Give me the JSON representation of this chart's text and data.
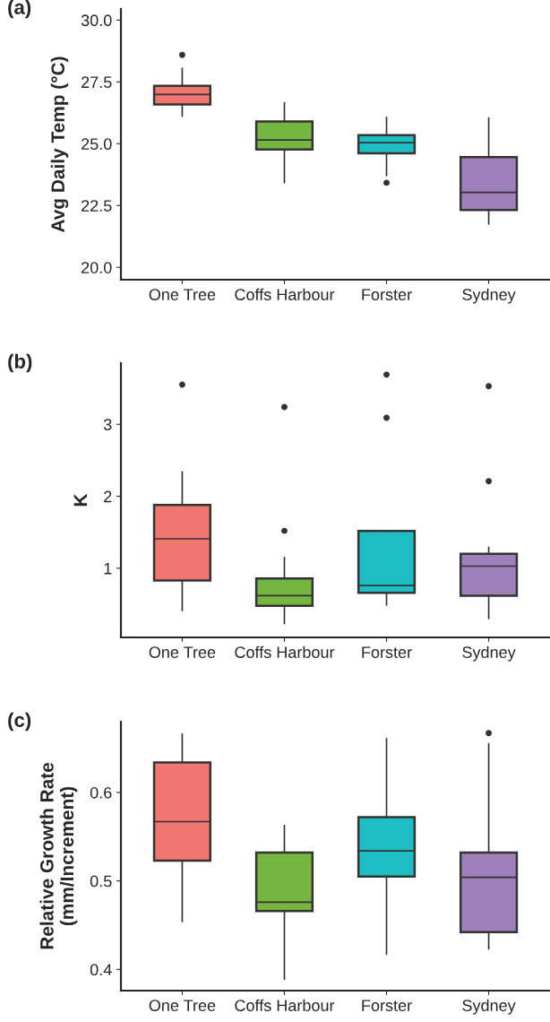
{
  "chart_data": [
    {
      "type": "box",
      "title": "(a)",
      "ylabel": "Avg Daily Temp (°C)",
      "categories": [
        "One Tree",
        "Coffs Harbour",
        "Forster",
        "Sydney"
      ],
      "colors": [
        "#f17570",
        "#76b540",
        "#1ebec4",
        "#9e80ba"
      ],
      "ylim": [
        19.5,
        30.45
      ],
      "yticks": [
        {
          "value": 20,
          "label": "20.0"
        },
        {
          "value": 22.5,
          "label": "22.5"
        },
        {
          "value": 25,
          "label": "25.0"
        },
        {
          "value": 27.5,
          "label": "27.5"
        },
        {
          "value": 30,
          "label": "30.0"
        }
      ],
      "grid": false,
      "legend": false,
      "boxes": [
        {
          "low": 26.11,
          "q1": 26.59,
          "median": 26.99,
          "q3": 27.34,
          "high": 28.05,
          "outliers": [
            28.59
          ]
        },
        {
          "low": 23.42,
          "q1": 24.77,
          "median": 25.15,
          "q3": 25.9,
          "high": 26.66
        },
        {
          "low": 23.71,
          "q1": 24.61,
          "median": 25.04,
          "q3": 25.35,
          "high": 26.07,
          "outliers": [
            23.42
          ]
        },
        {
          "low": 21.75,
          "q1": 22.32,
          "median": 23.03,
          "q3": 24.46,
          "high": 26.04
        }
      ]
    },
    {
      "type": "box",
      "title": "(b)",
      "ylabel": "K",
      "categories": [
        "One Tree",
        "Coffs Harbour",
        "Forster",
        "Sydney"
      ],
      "colors": [
        "#f17570",
        "#76b540",
        "#1ebec4",
        "#9e80ba"
      ],
      "ylim": [
        0.04,
        3.85
      ],
      "yticks": [
        1,
        2,
        3
      ],
      "grid": false,
      "legend": false,
      "boxes": [
        {
          "low": 0.41,
          "q1": 0.83,
          "median": 1.41,
          "q3": 1.88,
          "high": 2.34,
          "outliers": [
            3.55
          ]
        },
        {
          "low": 0.23,
          "q1": 0.48,
          "median": 0.62,
          "q3": 0.86,
          "high": 1.15,
          "outliers": [
            1.52,
            3.24
          ]
        },
        {
          "low": 0.49,
          "q1": 0.66,
          "median": 0.76,
          "q3": 1.52,
          "high": 1.52,
          "outliers": [
            3.09,
            3.69
          ]
        },
        {
          "low": 0.3,
          "q1": 0.62,
          "median": 1.03,
          "q3": 1.2,
          "high": 1.29,
          "outliers": [
            2.21,
            3.53
          ]
        }
      ]
    },
    {
      "type": "box",
      "title": "(c)",
      "ylabel": "Relative Growth Rate\n(mm/Increment)",
      "categories": [
        "One Tree",
        "Coffs Harbour",
        "Forster",
        "Sydney"
      ],
      "colors": [
        "#f17570",
        "#76b540",
        "#1ebec4",
        "#9e80ba"
      ],
      "ylim": [
        0.376,
        0.68
      ],
      "yticks": [
        0.4,
        0.5,
        0.6
      ],
      "grid": false,
      "legend": false,
      "boxes": [
        {
          "low": 0.454,
          "q1": 0.523,
          "median": 0.567,
          "q3": 0.634,
          "high": 0.666
        },
        {
          "low": 0.389,
          "q1": 0.466,
          "median": 0.476,
          "q3": 0.532,
          "high": 0.563
        },
        {
          "low": 0.417,
          "q1": 0.505,
          "median": 0.534,
          "q3": 0.572,
          "high": 0.661
        },
        {
          "low": 0.423,
          "q1": 0.442,
          "median": 0.504,
          "q3": 0.532,
          "high": 0.655,
          "outliers": [
            0.667
          ]
        }
      ]
    }
  ]
}
